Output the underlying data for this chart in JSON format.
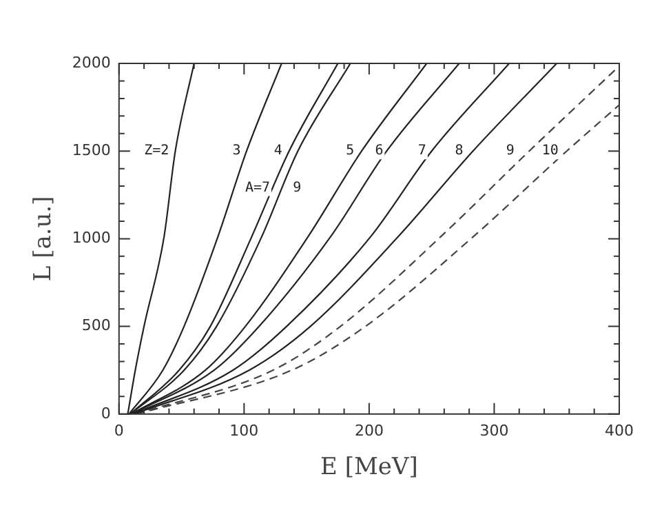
{
  "chart_data": {
    "type": "line",
    "xlabel": "E [MeV]",
    "ylabel": "L [a.u.]",
    "xlim": [
      0,
      400
    ],
    "ylim": [
      0,
      2000
    ],
    "xticks": [
      0,
      {
        "value": 20,
        "label": null
      },
      {
        "value": 40,
        "label": null
      },
      {
        "value": 60,
        "label": null
      },
      {
        "value": 80,
        "label": null
      },
      100,
      {
        "value": 120,
        "label": null
      },
      {
        "value": 140,
        "label": null
      },
      {
        "value": 160,
        "label": null
      },
      {
        "value": 180,
        "label": null
      },
      200,
      {
        "value": 220,
        "label": null
      },
      {
        "value": 240,
        "label": null
      },
      {
        "value": 260,
        "label": null
      },
      {
        "value": 280,
        "label": null
      },
      300,
      {
        "value": 320,
        "label": null
      },
      {
        "value": 340,
        "label": null
      },
      {
        "value": 360,
        "label": null
      },
      {
        "value": 380,
        "label": null
      },
      400
    ],
    "yticks": [
      0,
      {
        "value": 100,
        "label": null
      },
      {
        "value": 200,
        "label": null
      },
      {
        "value": 300,
        "label": null
      },
      {
        "value": 400,
        "label": null
      },
      500,
      {
        "value": 600,
        "label": null
      },
      {
        "value": 700,
        "label": null
      },
      {
        "value": 800,
        "label": null
      },
      {
        "value": 900,
        "label": null
      },
      1000,
      {
        "value": 1100,
        "label": null
      },
      {
        "value": 1200,
        "label": null
      },
      {
        "value": 1300,
        "label": null
      },
      {
        "value": 1400,
        "label": null
      },
      1500,
      {
        "value": 1600,
        "label": null
      },
      {
        "value": 1700,
        "label": null
      },
      {
        "value": 1800,
        "label": null
      },
      {
        "value": 1900,
        "label": null
      },
      2000
    ],
    "grid": false,
    "legend": false,
    "marker": "none",
    "series": [
      {
        "color": "#222222",
        "line_style": "solid",
        "x": [
          7,
          13,
          20,
          36,
          45,
          60
        ],
        "values": [
          0,
          250,
          500,
          1010,
          1500,
          2000
        ]
      },
      {
        "color": "#222222",
        "line_style": "solid",
        "x": [
          8,
          35,
          52,
          79,
          102,
          130
        ],
        "values": [
          0,
          250,
          500,
          1010,
          1500,
          2000
        ]
      },
      {
        "color": "#222222",
        "line_style": "solid",
        "x": [
          9,
          48,
          73,
          106,
          136,
          175
        ],
        "values": [
          0,
          250,
          500,
          1010,
          1500,
          2000
        ]
      },
      {
        "color": "#222222",
        "line_style": "solid",
        "x": [
          9,
          52,
          78,
          114,
          143,
          185
        ],
        "values": [
          0,
          250,
          500,
          1010,
          1500,
          2000
        ]
      },
      {
        "color": "#222222",
        "line_style": "solid",
        "x": [
          10,
          69,
          101,
          151,
          194,
          246
        ],
        "values": [
          0,
          250,
          500,
          1010,
          1500,
          2000
        ]
      },
      {
        "color": "#222222",
        "line_style": "solid",
        "x": [
          10,
          76,
          112,
          169,
          214,
          272
        ],
        "values": [
          0,
          250,
          500,
          1010,
          1500,
          2000
        ]
      },
      {
        "color": "#222222",
        "line_style": "solid",
        "x": [
          11,
          91,
          134,
          201,
          250,
          312
        ],
        "values": [
          0,
          250,
          500,
          1010,
          1500,
          2000
        ]
      },
      {
        "color": "#222222",
        "line_style": "solid",
        "x": [
          12,
          104,
          153,
          223,
          283,
          350
        ],
        "values": [
          0,
          250,
          500,
          1010,
          1500,
          2000
        ]
      },
      {
        "color": "#444444",
        "line_style": "dashed",
        "x": [
          13,
          123,
          177,
          257,
          328,
          400
        ],
        "values": [
          0,
          250,
          500,
          1010,
          1500,
          1985
        ]
      },
      {
        "color": "#444444",
        "line_style": "dashed",
        "x": [
          14,
          138,
          197,
          283,
          358,
          400
        ],
        "values": [
          0,
          250,
          500,
          1010,
          1500,
          1763
        ]
      }
    ],
    "annotations": [
      "Z=2",
      "3",
      "4",
      "A=7",
      "9",
      "5",
      "6",
      "7",
      "8",
      "9",
      "10"
    ]
  }
}
